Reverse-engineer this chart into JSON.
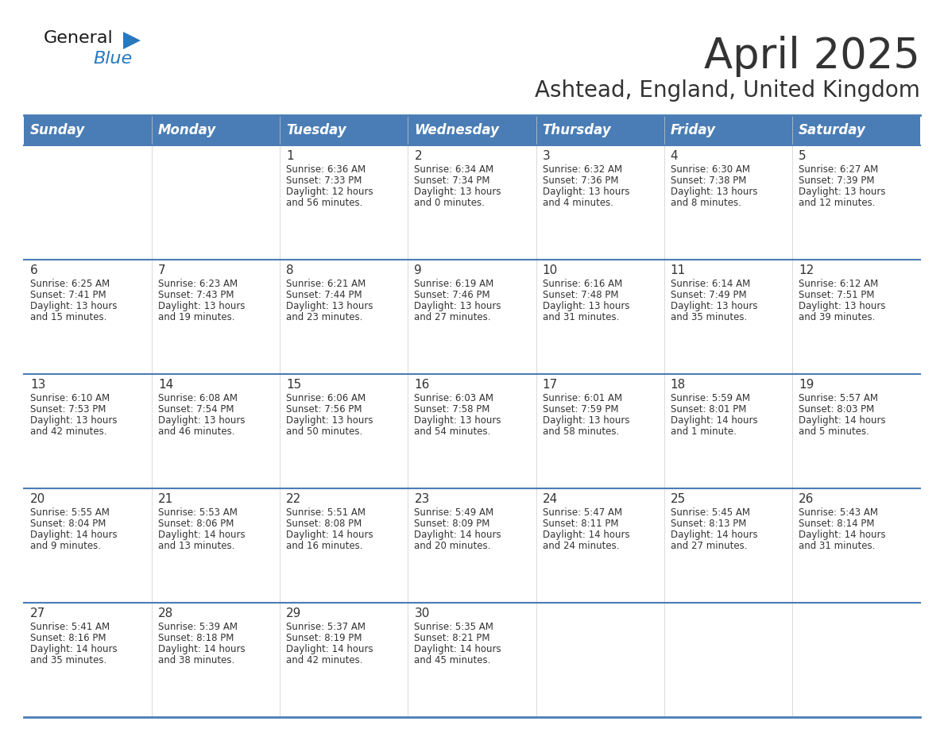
{
  "title": "April 2025",
  "subtitle": "Ashtead, England, United Kingdom",
  "header_color": "#4A7DB5",
  "header_text_color": "#FFFFFF",
  "cell_bg_color": "#FFFFFF",
  "border_color": "#4A7DB5",
  "text_color": "#333333",
  "day_headers": [
    "Sunday",
    "Monday",
    "Tuesday",
    "Wednesday",
    "Thursday",
    "Friday",
    "Saturday"
  ],
  "weeks": [
    [
      {
        "day": "",
        "info": ""
      },
      {
        "day": "",
        "info": ""
      },
      {
        "day": "1",
        "info": "Sunrise: 6:36 AM\nSunset: 7:33 PM\nDaylight: 12 hours\nand 56 minutes."
      },
      {
        "day": "2",
        "info": "Sunrise: 6:34 AM\nSunset: 7:34 PM\nDaylight: 13 hours\nand 0 minutes."
      },
      {
        "day": "3",
        "info": "Sunrise: 6:32 AM\nSunset: 7:36 PM\nDaylight: 13 hours\nand 4 minutes."
      },
      {
        "day": "4",
        "info": "Sunrise: 6:30 AM\nSunset: 7:38 PM\nDaylight: 13 hours\nand 8 minutes."
      },
      {
        "day": "5",
        "info": "Sunrise: 6:27 AM\nSunset: 7:39 PM\nDaylight: 13 hours\nand 12 minutes."
      }
    ],
    [
      {
        "day": "6",
        "info": "Sunrise: 6:25 AM\nSunset: 7:41 PM\nDaylight: 13 hours\nand 15 minutes."
      },
      {
        "day": "7",
        "info": "Sunrise: 6:23 AM\nSunset: 7:43 PM\nDaylight: 13 hours\nand 19 minutes."
      },
      {
        "day": "8",
        "info": "Sunrise: 6:21 AM\nSunset: 7:44 PM\nDaylight: 13 hours\nand 23 minutes."
      },
      {
        "day": "9",
        "info": "Sunrise: 6:19 AM\nSunset: 7:46 PM\nDaylight: 13 hours\nand 27 minutes."
      },
      {
        "day": "10",
        "info": "Sunrise: 6:16 AM\nSunset: 7:48 PM\nDaylight: 13 hours\nand 31 minutes."
      },
      {
        "day": "11",
        "info": "Sunrise: 6:14 AM\nSunset: 7:49 PM\nDaylight: 13 hours\nand 35 minutes."
      },
      {
        "day": "12",
        "info": "Sunrise: 6:12 AM\nSunset: 7:51 PM\nDaylight: 13 hours\nand 39 minutes."
      }
    ],
    [
      {
        "day": "13",
        "info": "Sunrise: 6:10 AM\nSunset: 7:53 PM\nDaylight: 13 hours\nand 42 minutes."
      },
      {
        "day": "14",
        "info": "Sunrise: 6:08 AM\nSunset: 7:54 PM\nDaylight: 13 hours\nand 46 minutes."
      },
      {
        "day": "15",
        "info": "Sunrise: 6:06 AM\nSunset: 7:56 PM\nDaylight: 13 hours\nand 50 minutes."
      },
      {
        "day": "16",
        "info": "Sunrise: 6:03 AM\nSunset: 7:58 PM\nDaylight: 13 hours\nand 54 minutes."
      },
      {
        "day": "17",
        "info": "Sunrise: 6:01 AM\nSunset: 7:59 PM\nDaylight: 13 hours\nand 58 minutes."
      },
      {
        "day": "18",
        "info": "Sunrise: 5:59 AM\nSunset: 8:01 PM\nDaylight: 14 hours\nand 1 minute."
      },
      {
        "day": "19",
        "info": "Sunrise: 5:57 AM\nSunset: 8:03 PM\nDaylight: 14 hours\nand 5 minutes."
      }
    ],
    [
      {
        "day": "20",
        "info": "Sunrise: 5:55 AM\nSunset: 8:04 PM\nDaylight: 14 hours\nand 9 minutes."
      },
      {
        "day": "21",
        "info": "Sunrise: 5:53 AM\nSunset: 8:06 PM\nDaylight: 14 hours\nand 13 minutes."
      },
      {
        "day": "22",
        "info": "Sunrise: 5:51 AM\nSunset: 8:08 PM\nDaylight: 14 hours\nand 16 minutes."
      },
      {
        "day": "23",
        "info": "Sunrise: 5:49 AM\nSunset: 8:09 PM\nDaylight: 14 hours\nand 20 minutes."
      },
      {
        "day": "24",
        "info": "Sunrise: 5:47 AM\nSunset: 8:11 PM\nDaylight: 14 hours\nand 24 minutes."
      },
      {
        "day": "25",
        "info": "Sunrise: 5:45 AM\nSunset: 8:13 PM\nDaylight: 14 hours\nand 27 minutes."
      },
      {
        "day": "26",
        "info": "Sunrise: 5:43 AM\nSunset: 8:14 PM\nDaylight: 14 hours\nand 31 minutes."
      }
    ],
    [
      {
        "day": "27",
        "info": "Sunrise: 5:41 AM\nSunset: 8:16 PM\nDaylight: 14 hours\nand 35 minutes."
      },
      {
        "day": "28",
        "info": "Sunrise: 5:39 AM\nSunset: 8:18 PM\nDaylight: 14 hours\nand 38 minutes."
      },
      {
        "day": "29",
        "info": "Sunrise: 5:37 AM\nSunset: 8:19 PM\nDaylight: 14 hours\nand 42 minutes."
      },
      {
        "day": "30",
        "info": "Sunrise: 5:35 AM\nSunset: 8:21 PM\nDaylight: 14 hours\nand 45 minutes."
      },
      {
        "day": "",
        "info": ""
      },
      {
        "day": "",
        "info": ""
      },
      {
        "day": "",
        "info": ""
      }
    ]
  ],
  "logo_text1": "General",
  "logo_text2": "Blue",
  "logo_text1_color": "#1a1a1a",
  "logo_text2_color": "#2878BE",
  "logo_triangle_color": "#2878BE",
  "title_fontsize": 38,
  "subtitle_fontsize": 20,
  "header_fontsize": 12,
  "day_num_fontsize": 11,
  "info_fontsize": 8.5
}
